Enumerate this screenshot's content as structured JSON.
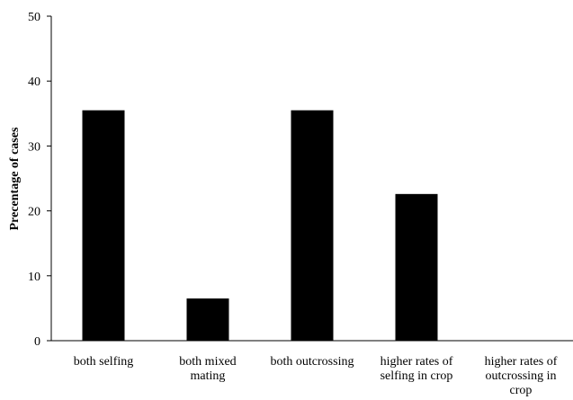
{
  "chart_data": {
    "type": "bar",
    "categories": [
      "both selfing",
      "both mixed mating",
      "both outcrossing",
      "higher rates of selfing in crop",
      "higher rates of outcrossing in crop"
    ],
    "category_lines": [
      [
        "both selfing"
      ],
      [
        "both mixed",
        "mating"
      ],
      [
        "both outcrossing"
      ],
      [
        "higher rates of",
        "selfing in crop"
      ],
      [
        "higher rates of",
        "outcrossing in",
        "crop"
      ]
    ],
    "values": [
      35.5,
      6.5,
      35.5,
      22.6,
      0
    ],
    "ylabel": "Precentage of cases",
    "xlabel": "",
    "ylim": [
      0,
      50
    ],
    "yticks": [
      0,
      10,
      20,
      30,
      40,
      50
    ],
    "grid": false,
    "bar_color": "#000000"
  }
}
